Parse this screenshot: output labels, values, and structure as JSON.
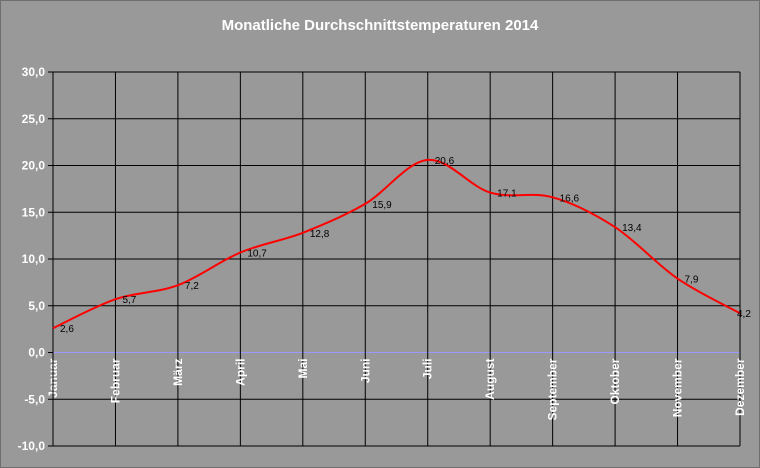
{
  "chart_data": {
    "type": "line",
    "title": "Monatliche Durchschnittstemperaturen 2014",
    "xlabel": "",
    "ylabel": "",
    "categories": [
      "Januar",
      "Februar",
      "März",
      "April",
      "Mai",
      "Juni",
      "Juli",
      "August",
      "September",
      "Oktober",
      "November",
      "Dezember"
    ],
    "series": [
      {
        "values": [
          2.6,
          5.7,
          7.2,
          10.7,
          12.8,
          15.9,
          20.6,
          17.1,
          16.6,
          13.4,
          7.9,
          4.2
        ],
        "data_labels": [
          "2,6",
          "5,7",
          "7,2",
          "10,7",
          "12,8",
          "15,9",
          "20,6",
          "17,1",
          "16,6",
          "13,4",
          "7,9",
          "4,2"
        ],
        "color": "#ff0000"
      }
    ],
    "ylim": [
      -10,
      30
    ],
    "y_ticks": [
      30,
      25,
      20,
      15,
      10,
      5,
      0,
      -5,
      -10
    ],
    "y_tick_labels": [
      "30,0",
      "25,0",
      "20,0",
      "15,0",
      "10,0",
      "5,0",
      "0,0",
      "-5,0",
      "-10,0"
    ],
    "grid": true,
    "legend": "none",
    "colors": {
      "background": "#999999",
      "gridline": "#000000",
      "zero_line": "#9999ff",
      "line": "#ff0000",
      "text": "#ffffff"
    }
  }
}
